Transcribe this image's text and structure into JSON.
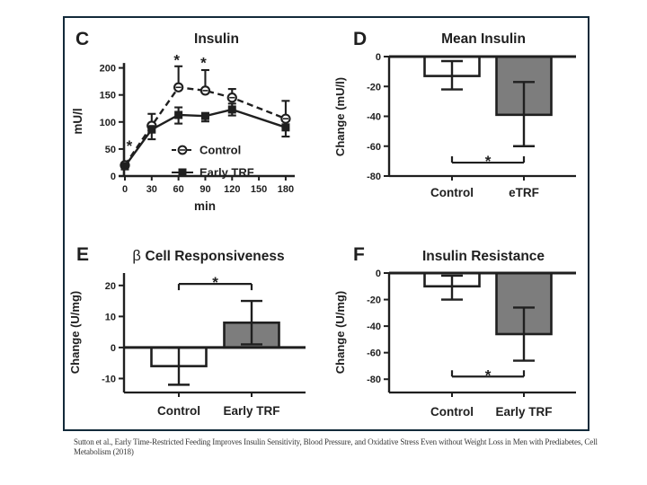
{
  "caption": {
    "line1": "Sutton et al., Early Time-Restricted Feeding Improves Insulin Sensitivity, Blood Pressure, and Oxidative Stress Even without Weight Loss in Men with Prediabetes, Cell",
    "line2": "Metabolism (2018)"
  },
  "colors": {
    "ink": "#1f1f1f",
    "white": "#ffffff",
    "gray": "#7d7d7d",
    "frame_border": "#132a3a",
    "caption_text": "#383838",
    "background": "#ffffff"
  },
  "chart_data": [
    {
      "id": "panelC",
      "panel_label": "C",
      "type": "line",
      "title": "Insulin",
      "xlabel": "min",
      "ylabel": "mU/l",
      "x": [
        0,
        30,
        60,
        90,
        120,
        180
      ],
      "xticks": [
        0,
        30,
        60,
        90,
        120,
        150,
        180
      ],
      "yticks": [
        0,
        50,
        100,
        150,
        200
      ],
      "xlim": [
        0,
        180
      ],
      "ylim": [
        0,
        225
      ],
      "grid": false,
      "legend_position": "inside-right",
      "series": [
        {
          "name": "Control",
          "marker": "open-circle",
          "linestyle": "dashed",
          "values": [
            20,
            93,
            164,
            158,
            145,
            106
          ],
          "err_up": [
            5,
            22,
            39,
            38,
            16,
            33
          ],
          "err_down": [
            0,
            0,
            0,
            0,
            0,
            0
          ]
        },
        {
          "name": "Early TRF",
          "marker": "filled-square",
          "linestyle": "solid",
          "values": [
            18,
            86,
            113,
            111,
            123,
            90
          ],
          "err_up": [
            0,
            0,
            14,
            4,
            11,
            0
          ],
          "err_down": [
            4,
            18,
            16,
            10,
            11,
            17
          ]
        }
      ],
      "annotations": [
        {
          "text": "*",
          "x": 5,
          "y": 63
        },
        {
          "text": "*",
          "x": 58,
          "y": 222
        },
        {
          "text": "*",
          "x": 88,
          "y": 217
        }
      ]
    },
    {
      "id": "panelD",
      "panel_label": "D",
      "type": "bar",
      "title": "Mean Insulin",
      "ylabel": "Change (mU/l)",
      "categories": [
        "Control",
        "eTRF"
      ],
      "values": [
        -13,
        -39
      ],
      "err_top": [
        -3,
        -17
      ],
      "err_bottom": [
        -22,
        -60
      ],
      "bar_fills": [
        "white",
        "gray"
      ],
      "yticks": [
        0,
        -20,
        -40,
        -60,
        -80
      ],
      "ylim": [
        -80,
        0
      ],
      "sig_bracket": {
        "y": -71,
        "label": "*"
      }
    },
    {
      "id": "panelE",
      "panel_label": "E",
      "type": "bar",
      "title": "β Cell Responsiveness",
      "ylabel": "Change (U/mg)",
      "categories": [
        "Control",
        "Early TRF"
      ],
      "values": [
        -6,
        8
      ],
      "err_top": [
        0,
        15
      ],
      "err_bottom": [
        -12,
        1
      ],
      "bar_fills": [
        "white",
        "gray"
      ],
      "yticks": [
        20,
        10,
        0,
        -10
      ],
      "ylim": [
        -14.5,
        24
      ],
      "sig_bracket": {
        "y": 20.5,
        "label": "*"
      }
    },
    {
      "id": "panelF",
      "panel_label": "F",
      "type": "bar",
      "title": "Insulin Resistance",
      "ylabel": "Change (U/mg)",
      "categories": [
        "Control",
        "Early TRF"
      ],
      "values": [
        -10,
        -46
      ],
      "err_top": [
        -2,
        -26
      ],
      "err_bottom": [
        -20,
        -66
      ],
      "bar_fills": [
        "white",
        "gray"
      ],
      "yticks": [
        0,
        -20,
        -40,
        -60,
        -80
      ],
      "ylim": [
        -90,
        0
      ],
      "sig_bracket": {
        "y": -78,
        "label": "*"
      }
    }
  ]
}
